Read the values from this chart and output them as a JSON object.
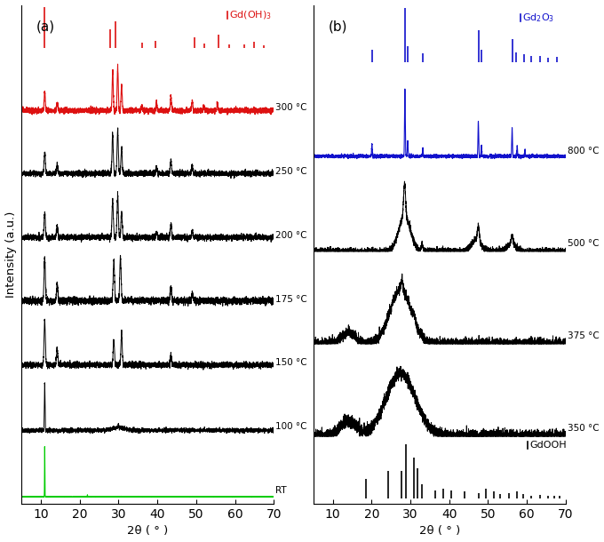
{
  "fig_width": 6.8,
  "fig_height": 6.1,
  "dpi": 100,
  "panel_a_label": "(a)",
  "panel_b_label": "(b)",
  "xlabel": "2θ ( ° )",
  "ylabel": "Intensity (a.u.)",
  "xmin": 5,
  "xmax": 70,
  "panel_a_temps": [
    "RT",
    "100 °C",
    "150 °C",
    "175 °C",
    "200 °C",
    "250 °C",
    "300 °C"
  ],
  "panel_b_temps": [
    "350 °C",
    "375 °C",
    "500 °C",
    "800 °C"
  ],
  "gdoh3_peaks": [
    11.0,
    27.8,
    29.3,
    36.0,
    39.5,
    49.5,
    52.0,
    55.8,
    58.5,
    62.5,
    65.0,
    67.5
  ],
  "gdoh3_heights": [
    1.0,
    0.45,
    0.65,
    0.12,
    0.18,
    0.25,
    0.1,
    0.32,
    0.08,
    0.08,
    0.15,
    0.06
  ],
  "gdooh_peaks": [
    18.6,
    24.2,
    27.8,
    28.8,
    30.8,
    31.8,
    33.0,
    36.5,
    38.5,
    40.5,
    44.0,
    47.5,
    49.5,
    51.5,
    53.0,
    55.5,
    57.5,
    59.0,
    61.0,
    63.5,
    65.5,
    67.0,
    68.5
  ],
  "gdooh_heights": [
    0.35,
    0.5,
    0.5,
    1.0,
    0.75,
    0.55,
    0.25,
    0.15,
    0.18,
    0.15,
    0.12,
    0.1,
    0.18,
    0.12,
    0.08,
    0.09,
    0.12,
    0.07,
    0.05,
    0.06,
    0.05,
    0.04,
    0.04
  ],
  "gd2o3_peaks": [
    20.1,
    28.6,
    29.2,
    33.2,
    47.5,
    48.3,
    56.2,
    57.3,
    59.2,
    61.0,
    63.5,
    65.5,
    67.8
  ],
  "gd2o3_heights": [
    0.22,
    1.0,
    0.28,
    0.15,
    0.58,
    0.22,
    0.42,
    0.18,
    0.14,
    0.1,
    0.11,
    0.08,
    0.09
  ],
  "color_rt": "#00cc00",
  "color_300": "#dd1111",
  "color_black": "#000000",
  "color_800": "#1111cc",
  "color_gdoh3_ref": "#dd1111",
  "color_gd2o3_ref": "#1111cc",
  "color_gdooh_ref": "#000000",
  "xticks": [
    10,
    20,
    30,
    40,
    50,
    60,
    70
  ]
}
